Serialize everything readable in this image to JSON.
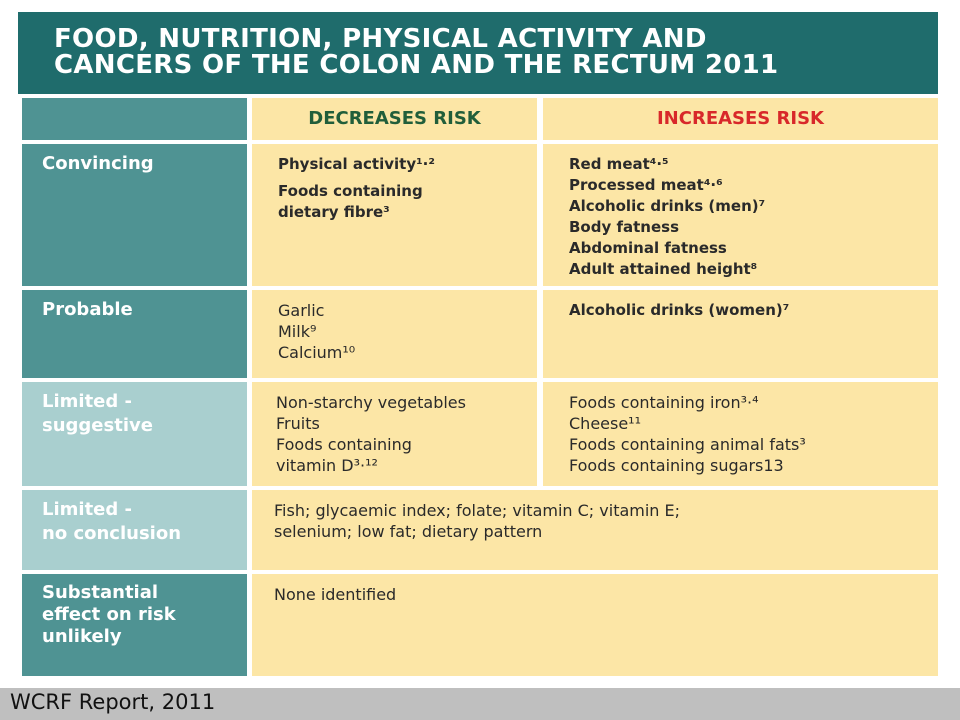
{
  "title_line1": "FOOD, NUTRITION, PHYSICAL ACTIVITY AND",
  "title_line2": "CANCERS OF THE COLON AND THE RECTUM 2011",
  "header": {
    "decreases": "DECREASES RISK",
    "increases": "INCREASES RISK"
  },
  "rows": [
    {
      "label": "Convincing",
      "decreases": [
        "Physical activity¹·²",
        "Foods containing\ndietary fibre³"
      ],
      "increases": [
        "Red meat⁴·⁵",
        "Processed meat⁴·⁶",
        "Alcoholic drinks (men)⁷",
        "Body fatness",
        "Abdominal fatness",
        "Adult attained height⁸"
      ]
    },
    {
      "label": "Probable",
      "decreases": [
        "Garlic",
        "Milk⁹",
        "Calcium¹⁰"
      ],
      "increases": [
        "Alcoholic drinks (women)⁷"
      ]
    },
    {
      "label": "Limited -\nsuggestive",
      "decreases": [
        "Non-starchy vegetables",
        "Fruits",
        "Foods containing\nvitamin D³·¹²"
      ],
      "increases": [
        "Foods containing iron³·⁴",
        "Cheese¹¹",
        "Foods containing animal fats³",
        "Foods containing sugars13"
      ]
    },
    {
      "label": "Limited -\nno conclusion",
      "combined": "Fish; glycaemic index; folate; vitamin C; vitamin E;\nselenium; low fat; dietary pattern"
    },
    {
      "label": "Substantial\neffect on risk\nunlikely",
      "combined": "None identified"
    }
  ],
  "footer": "WCRF Report,  2011"
}
